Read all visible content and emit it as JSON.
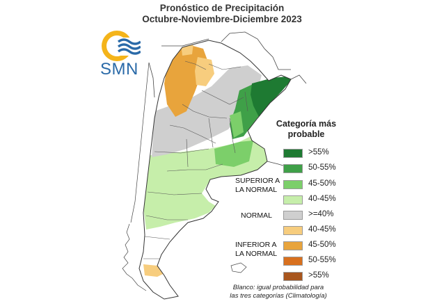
{
  "title": {
    "line1": "Pronóstico de Precipitación",
    "line2": "Octubre-Noviembre-Diciembre 2023"
  },
  "logo": {
    "text": "SMN",
    "icon": "smn-sun-waves-logo"
  },
  "legend": {
    "title_line1": "Categoría más",
    "title_line2": "probable",
    "items": [
      {
        "label": ">55%",
        "color": "#1e7a32"
      },
      {
        "label": "50-55%",
        "color": "#3fa048"
      },
      {
        "label": "45-50%",
        "color": "#7ccf6a"
      },
      {
        "label": "40-45%",
        "color": "#c6eeaa"
      },
      {
        "label": ">=40%",
        "color": "#cfcfcf"
      },
      {
        "label": "40-45%",
        "color": "#f7cd7e"
      },
      {
        "label": "45-50%",
        "color": "#e8a43c"
      },
      {
        "label": "50-55%",
        "color": "#d8701e"
      },
      {
        "label": ">55%",
        "color": "#a8561e"
      }
    ],
    "groups": {
      "superior_line1": "SUPERIOR A",
      "superior_line2": "LA NORMAL",
      "normal": "NORMAL",
      "inferior_line1": "INFERIOR A",
      "inferior_line2": "LA NORMAL"
    }
  },
  "note": {
    "line1": "Blanco: igual probabilidad para",
    "line2": "las tres categorías (Climatología)"
  }
}
